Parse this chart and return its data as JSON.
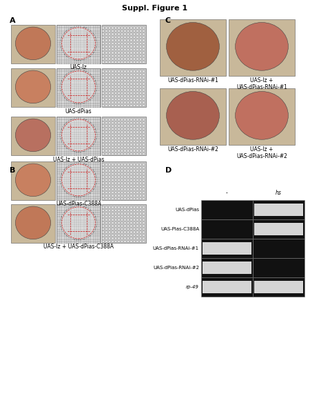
{
  "title": "Suppl. Figure 1",
  "panel_A_label": "A",
  "panel_B_label": "B",
  "panel_C_label": "C",
  "panel_D_label": "D",
  "row_labels_A": [
    "UAS-lz",
    "UAS-dPias",
    "UAS-lz + UAS-dPias"
  ],
  "row_labels_B": [
    "UAS-dPias-C388A",
    "UAS-lz + UAS-dPias-C388A"
  ],
  "col_labels_C_row1": [
    "UAS-dPias-RNAi-#1",
    "UAS-lz +\nUAS-dPias-RNAi-#1"
  ],
  "col_labels_C_row2": [
    "UAS-dPias-RNAi-#2",
    "UAS-lz +\nUAS-dPias-RNAi-#2"
  ],
  "gel_row_labels": [
    "UAS-dPias",
    "UAS-Pias-C388A",
    "UAS-dPias-RNAi-#1",
    "UAS-dPias-RNAi-#2",
    "rp-49"
  ],
  "gel_col_labels": [
    "-",
    "hs"
  ],
  "title_fontsize": 8,
  "label_fontsize": 5.5,
  "panel_fontsize": 8,
  "small_label_fontsize": 5
}
